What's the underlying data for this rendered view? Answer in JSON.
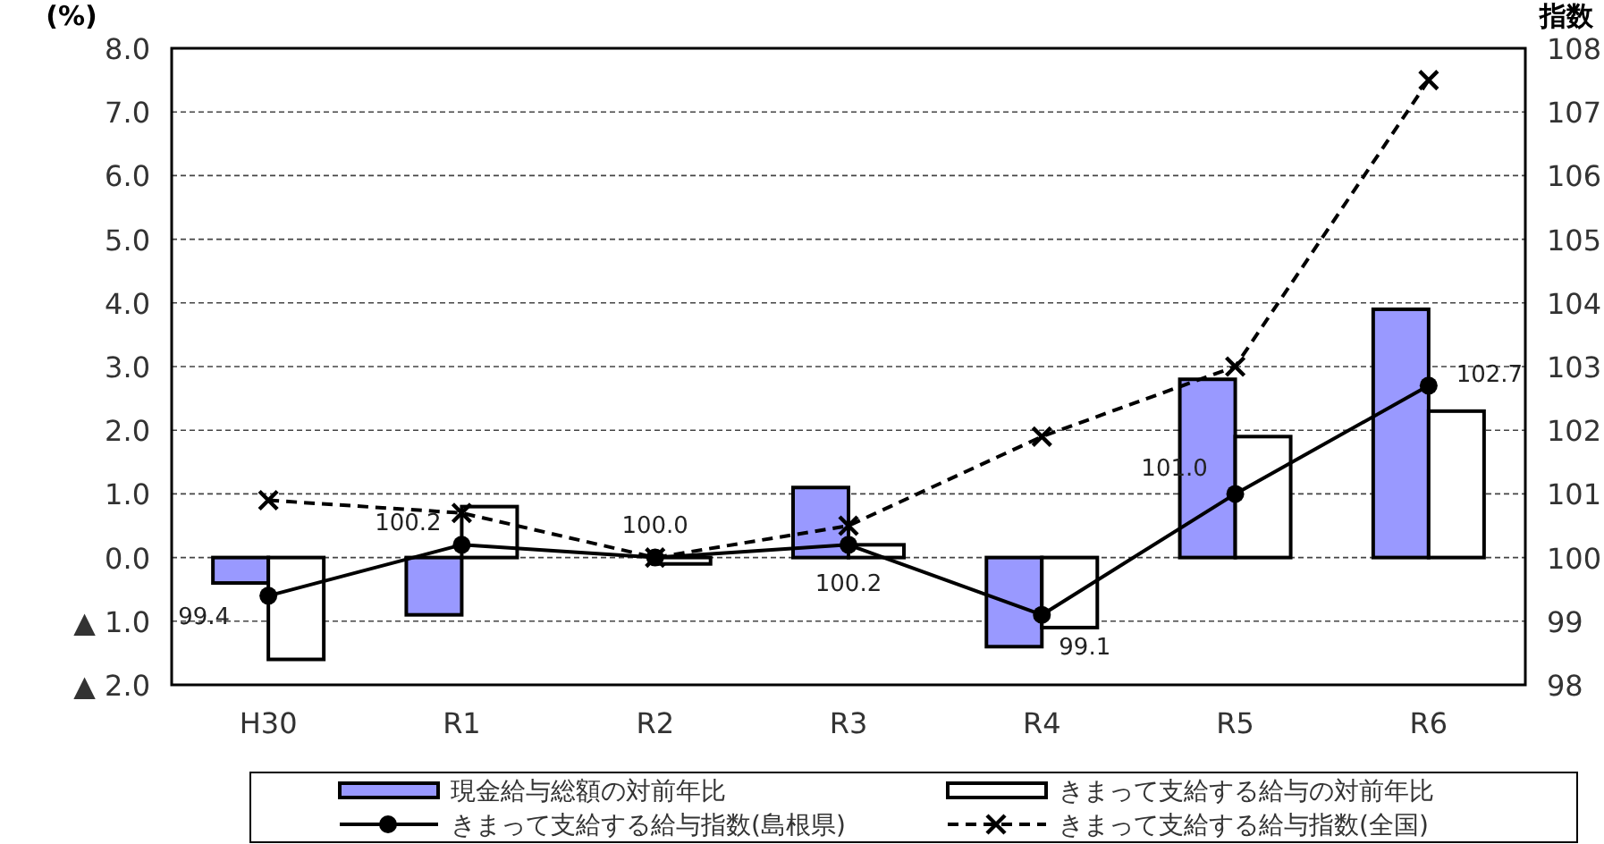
{
  "chart_data": {
    "type": "bar",
    "ylabel": "(%)",
    "y2label": "指数",
    "categories": [
      "H30",
      "R1",
      "R2",
      "R3",
      "R4",
      "R5",
      "R6"
    ],
    "series": [
      {
        "name": "現金給与総額の対前年比",
        "color": "#9999ff",
        "values": [
          -0.4,
          -0.9,
          0.0,
          1.1,
          -1.4,
          2.8,
          3.9
        ]
      },
      {
        "name": "きまって支給する給与の対前年比",
        "color": "#ffffff",
        "values": [
          -1.6,
          0.8,
          -0.1,
          0.2,
          -1.1,
          1.9,
          2.3
        ]
      },
      {
        "name": "きまって支給する給与指数(島根県)",
        "type": "line",
        "axis": "y2",
        "color": "#000000",
        "marker": "circle",
        "line_style": "solid",
        "values": [
          99.4,
          100.2,
          100.0,
          100.2,
          99.1,
          101.0,
          102.7
        ],
        "value_labels": [
          "99.4",
          "100.2",
          "100.0",
          "100.2",
          "99.1",
          "101.0",
          "102.7"
        ]
      },
      {
        "name": "きまって支給する給与指数(全国)",
        "type": "line",
        "axis": "y2",
        "color": "#000000",
        "marker": "cross",
        "line_style": "dashed",
        "values": [
          100.9,
          100.7,
          100.0,
          100.5,
          101.9,
          103.0,
          107.5
        ]
      }
    ],
    "ylim": [
      -2,
      8
    ],
    "yticks": [
      {
        "value": -2,
        "label": "▲ 2.0"
      },
      {
        "value": -1,
        "label": "▲ 1.0"
      },
      {
        "value": 0,
        "label": "0.0"
      },
      {
        "value": 1,
        "label": "1.0"
      },
      {
        "value": 2,
        "label": "2.0"
      },
      {
        "value": 3,
        "label": "3.0"
      },
      {
        "value": 4,
        "label": "4.0"
      },
      {
        "value": 5,
        "label": "5.0"
      },
      {
        "value": 6,
        "label": "6.0"
      },
      {
        "value": 7,
        "label": "7.0"
      },
      {
        "value": 8,
        "label": "8.0"
      }
    ],
    "y2lim": [
      98,
      108
    ],
    "y2ticks": [
      98,
      99,
      100,
      101,
      102,
      103,
      104,
      105,
      106,
      107,
      108
    ],
    "grid": "y",
    "legend": "bottom"
  }
}
